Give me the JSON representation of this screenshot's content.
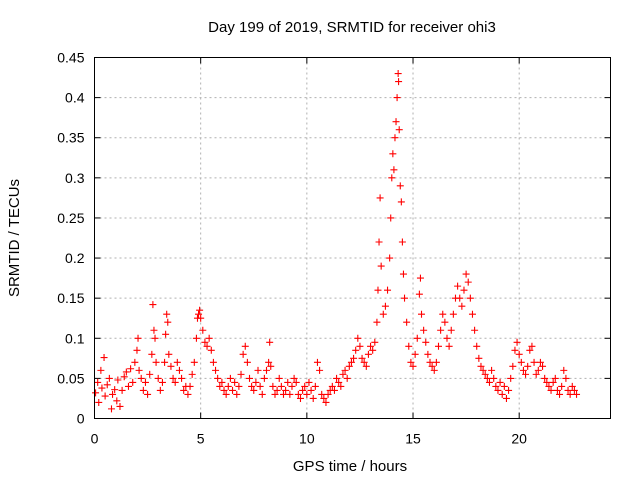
{
  "chart_data": {
    "type": "scatter",
    "title": "Day 199 of 2019, SRMTID for receiver ohi3",
    "xlabel": "GPS time / hours",
    "ylabel": "SRMTID / TECUs",
    "xlim": [
      0,
      24.3
    ],
    "ylim": [
      0,
      0.45
    ],
    "xticks": [
      0,
      5,
      10,
      15,
      20
    ],
    "xtick_labels": [
      "0",
      "5",
      "10",
      "15",
      "20"
    ],
    "yticks": [
      0,
      0.05,
      0.1,
      0.15,
      0.2,
      0.25,
      0.3,
      0.35,
      0.4,
      0.45
    ],
    "ytick_labels": [
      "0",
      "0.05",
      "0.1",
      "0.15",
      "0.2",
      "0.25",
      "0.3",
      "0.35",
      "0.4",
      "0.45"
    ],
    "grid": true,
    "marker": "+",
    "color": "#ff0000",
    "series": [
      {
        "name": "SRMTID",
        "points": [
          [
            0.05,
            0.032
          ],
          [
            0.15,
            0.045
          ],
          [
            0.2,
            0.02
          ],
          [
            0.3,
            0.06
          ],
          [
            0.35,
            0.038
          ],
          [
            0.45,
            0.076
          ],
          [
            0.5,
            0.028
          ],
          [
            0.6,
            0.042
          ],
          [
            0.7,
            0.05
          ],
          [
            0.8,
            0.012
          ],
          [
            0.85,
            0.03
          ],
          [
            0.95,
            0.036
          ],
          [
            1.05,
            0.022
          ],
          [
            1.1,
            0.048
          ],
          [
            1.2,
            0.015
          ],
          [
            1.3,
            0.035
          ],
          [
            1.4,
            0.052
          ],
          [
            1.5,
            0.058
          ],
          [
            1.6,
            0.04
          ],
          [
            1.7,
            0.062
          ],
          [
            1.8,
            0.045
          ],
          [
            1.9,
            0.07
          ],
          [
            2.0,
            0.085
          ],
          [
            2.05,
            0.1
          ],
          [
            2.1,
            0.06
          ],
          [
            2.2,
            0.05
          ],
          [
            2.3,
            0.035
          ],
          [
            2.4,
            0.045
          ],
          [
            2.5,
            0.03
          ],
          [
            2.6,
            0.055
          ],
          [
            2.7,
            0.08
          ],
          [
            2.75,
            0.142
          ],
          [
            2.8,
            0.11
          ],
          [
            2.85,
            0.1
          ],
          [
            2.9,
            0.07
          ],
          [
            3.0,
            0.05
          ],
          [
            3.1,
            0.035
          ],
          [
            3.2,
            0.045
          ],
          [
            3.3,
            0.07
          ],
          [
            3.35,
            0.105
          ],
          [
            3.4,
            0.13
          ],
          [
            3.45,
            0.12
          ],
          [
            3.5,
            0.08
          ],
          [
            3.6,
            0.065
          ],
          [
            3.7,
            0.05
          ],
          [
            3.8,
            0.045
          ],
          [
            3.9,
            0.07
          ],
          [
            4.0,
            0.06
          ],
          [
            4.1,
            0.05
          ],
          [
            4.2,
            0.035
          ],
          [
            4.3,
            0.04
          ],
          [
            4.4,
            0.03
          ],
          [
            4.5,
            0.04
          ],
          [
            4.6,
            0.055
          ],
          [
            4.7,
            0.07
          ],
          [
            4.8,
            0.1
          ],
          [
            4.85,
            0.125
          ],
          [
            4.9,
            0.13
          ],
          [
            4.95,
            0.135
          ],
          [
            5.0,
            0.125
          ],
          [
            5.1,
            0.11
          ],
          [
            5.2,
            0.095
          ],
          [
            5.3,
            0.09
          ],
          [
            5.4,
            0.1
          ],
          [
            5.5,
            0.085
          ],
          [
            5.6,
            0.07
          ],
          [
            5.7,
            0.06
          ],
          [
            5.8,
            0.05
          ],
          [
            5.9,
            0.04
          ],
          [
            6.0,
            0.045
          ],
          [
            6.1,
            0.035
          ],
          [
            6.2,
            0.03
          ],
          [
            6.3,
            0.04
          ],
          [
            6.4,
            0.05
          ],
          [
            6.5,
            0.035
          ],
          [
            6.6,
            0.045
          ],
          [
            6.7,
            0.03
          ],
          [
            6.8,
            0.04
          ],
          [
            6.9,
            0.055
          ],
          [
            7.0,
            0.08
          ],
          [
            7.1,
            0.09
          ],
          [
            7.2,
            0.07
          ],
          [
            7.3,
            0.05
          ],
          [
            7.4,
            0.04
          ],
          [
            7.5,
            0.035
          ],
          [
            7.6,
            0.045
          ],
          [
            7.7,
            0.06
          ],
          [
            7.8,
            0.04
          ],
          [
            7.9,
            0.03
          ],
          [
            8.0,
            0.05
          ],
          [
            8.1,
            0.06
          ],
          [
            8.2,
            0.07
          ],
          [
            8.25,
            0.095
          ],
          [
            8.3,
            0.065
          ],
          [
            8.4,
            0.04
          ],
          [
            8.5,
            0.03
          ],
          [
            8.6,
            0.035
          ],
          [
            8.7,
            0.05
          ],
          [
            8.8,
            0.04
          ],
          [
            8.9,
            0.03
          ],
          [
            9.0,
            0.035
          ],
          [
            9.1,
            0.045
          ],
          [
            9.2,
            0.03
          ],
          [
            9.3,
            0.04
          ],
          [
            9.4,
            0.05
          ],
          [
            9.5,
            0.045
          ],
          [
            9.6,
            0.03
          ],
          [
            9.7,
            0.025
          ],
          [
            9.8,
            0.035
          ],
          [
            9.9,
            0.04
          ],
          [
            10.0,
            0.03
          ],
          [
            10.1,
            0.045
          ],
          [
            10.2,
            0.035
          ],
          [
            10.3,
            0.025
          ],
          [
            10.4,
            0.04
          ],
          [
            10.5,
            0.07
          ],
          [
            10.6,
            0.06
          ],
          [
            10.7,
            0.03
          ],
          [
            10.8,
            0.025
          ],
          [
            10.9,
            0.02
          ],
          [
            11.0,
            0.03
          ],
          [
            11.1,
            0.035
          ],
          [
            11.2,
            0.04
          ],
          [
            11.3,
            0.035
          ],
          [
            11.4,
            0.05
          ],
          [
            11.5,
            0.045
          ],
          [
            11.6,
            0.04
          ],
          [
            11.7,
            0.055
          ],
          [
            11.8,
            0.06
          ],
          [
            11.9,
            0.05
          ],
          [
            12.0,
            0.065
          ],
          [
            12.1,
            0.07
          ],
          [
            12.2,
            0.075
          ],
          [
            12.3,
            0.085
          ],
          [
            12.4,
            0.1
          ],
          [
            12.5,
            0.09
          ],
          [
            12.6,
            0.075
          ],
          [
            12.7,
            0.07
          ],
          [
            12.8,
            0.065
          ],
          [
            12.9,
            0.08
          ],
          [
            13.0,
            0.09
          ],
          [
            13.1,
            0.085
          ],
          [
            13.2,
            0.095
          ],
          [
            13.3,
            0.12
          ],
          [
            13.35,
            0.16
          ],
          [
            13.4,
            0.22
          ],
          [
            13.45,
            0.275
          ],
          [
            13.5,
            0.19
          ],
          [
            13.6,
            0.13
          ],
          [
            13.7,
            0.14
          ],
          [
            13.8,
            0.16
          ],
          [
            13.9,
            0.2
          ],
          [
            13.95,
            0.25
          ],
          [
            14.0,
            0.3
          ],
          [
            14.05,
            0.33
          ],
          [
            14.1,
            0.31
          ],
          [
            14.15,
            0.35
          ],
          [
            14.2,
            0.37
          ],
          [
            14.25,
            0.4
          ],
          [
            14.3,
            0.43
          ],
          [
            14.32,
            0.42
          ],
          [
            14.35,
            0.36
          ],
          [
            14.4,
            0.29
          ],
          [
            14.45,
            0.27
          ],
          [
            14.5,
            0.22
          ],
          [
            14.55,
            0.18
          ],
          [
            14.6,
            0.15
          ],
          [
            14.7,
            0.12
          ],
          [
            14.8,
            0.09
          ],
          [
            14.9,
            0.07
          ],
          [
            15.0,
            0.065
          ],
          [
            15.1,
            0.08
          ],
          [
            15.2,
            0.1
          ],
          [
            15.3,
            0.155
          ],
          [
            15.35,
            0.175
          ],
          [
            15.4,
            0.13
          ],
          [
            15.5,
            0.11
          ],
          [
            15.6,
            0.095
          ],
          [
            15.7,
            0.08
          ],
          [
            15.8,
            0.07
          ],
          [
            15.9,
            0.065
          ],
          [
            16.0,
            0.06
          ],
          [
            16.1,
            0.07
          ],
          [
            16.2,
            0.09
          ],
          [
            16.3,
            0.11
          ],
          [
            16.4,
            0.13
          ],
          [
            16.5,
            0.12
          ],
          [
            16.6,
            0.1
          ],
          [
            16.7,
            0.09
          ],
          [
            16.8,
            0.11
          ],
          [
            16.9,
            0.13
          ],
          [
            17.0,
            0.15
          ],
          [
            17.1,
            0.165
          ],
          [
            17.2,
            0.15
          ],
          [
            17.3,
            0.14
          ],
          [
            17.4,
            0.16
          ],
          [
            17.5,
            0.18
          ],
          [
            17.6,
            0.17
          ],
          [
            17.7,
            0.15
          ],
          [
            17.8,
            0.13
          ],
          [
            17.9,
            0.11
          ],
          [
            18.0,
            0.09
          ],
          [
            18.1,
            0.075
          ],
          [
            18.2,
            0.065
          ],
          [
            18.3,
            0.06
          ],
          [
            18.4,
            0.055
          ],
          [
            18.5,
            0.05
          ],
          [
            18.6,
            0.045
          ],
          [
            18.7,
            0.06
          ],
          [
            18.8,
            0.05
          ],
          [
            18.9,
            0.04
          ],
          [
            19.0,
            0.035
          ],
          [
            19.1,
            0.045
          ],
          [
            19.2,
            0.03
          ],
          [
            19.3,
            0.04
          ],
          [
            19.4,
            0.025
          ],
          [
            19.5,
            0.035
          ],
          [
            19.6,
            0.05
          ],
          [
            19.7,
            0.065
          ],
          [
            19.8,
            0.085
          ],
          [
            19.9,
            0.095
          ],
          [
            20.0,
            0.08
          ],
          [
            20.1,
            0.07
          ],
          [
            20.2,
            0.06
          ],
          [
            20.3,
            0.055
          ],
          [
            20.4,
            0.065
          ],
          [
            20.5,
            0.085
          ],
          [
            20.6,
            0.09
          ],
          [
            20.7,
            0.07
          ],
          [
            20.8,
            0.055
          ],
          [
            20.9,
            0.06
          ],
          [
            21.0,
            0.07
          ],
          [
            21.1,
            0.065
          ],
          [
            21.2,
            0.05
          ],
          [
            21.3,
            0.045
          ],
          [
            21.4,
            0.04
          ],
          [
            21.5,
            0.035
          ],
          [
            21.6,
            0.045
          ],
          [
            21.7,
            0.05
          ],
          [
            21.8,
            0.035
          ],
          [
            21.9,
            0.03
          ],
          [
            22.0,
            0.04
          ],
          [
            22.1,
            0.06
          ],
          [
            22.2,
            0.05
          ],
          [
            22.3,
            0.035
          ],
          [
            22.4,
            0.03
          ],
          [
            22.5,
            0.04
          ],
          [
            22.6,
            0.035
          ],
          [
            22.7,
            0.03
          ]
        ]
      }
    ]
  }
}
